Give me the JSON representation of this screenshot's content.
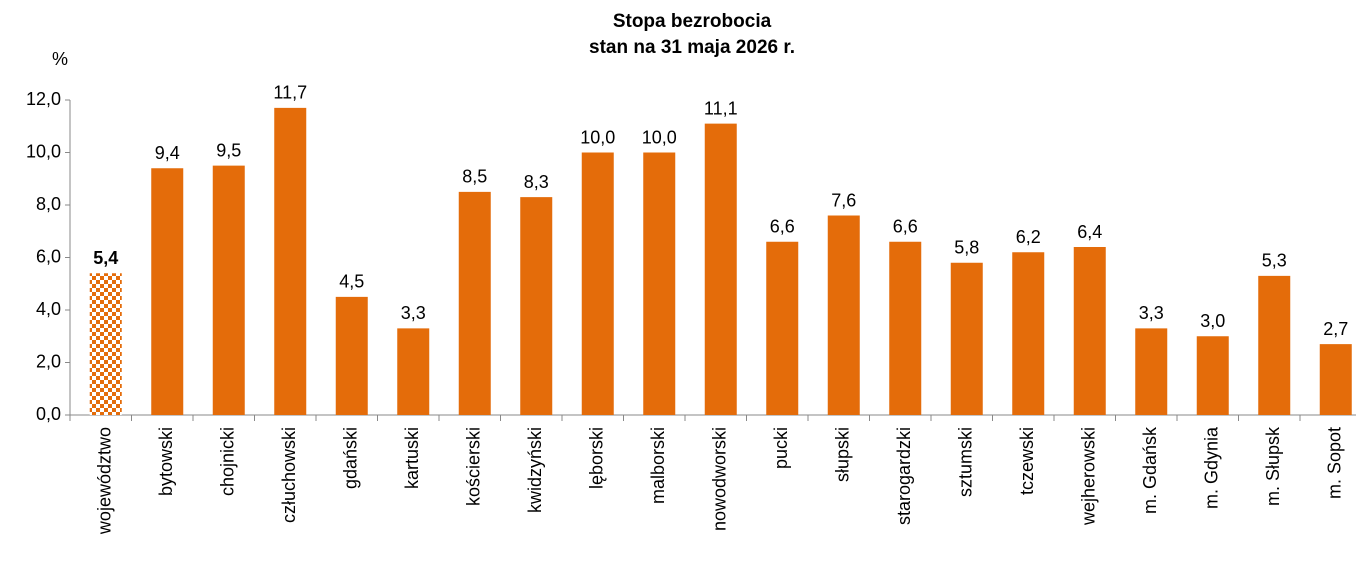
{
  "chart_data": {
    "type": "bar",
    "title": "Stopa bezrobocia",
    "subtitle": "stan na 31 maja 2026 r.",
    "y_label": "%",
    "categories": [
      "województwo",
      "bytowski",
      "chojnicki",
      "człuchowski",
      "gdański",
      "kartuski",
      "kościerski",
      "kwidzyński",
      "lęborski",
      "malborski",
      "nowodworski",
      "pucki",
      "słupski",
      "starogardzki",
      "sztumski",
      "tczewski",
      "wejherowski",
      "m. Gdańsk",
      "m. Gdynia",
      "m. Słupsk",
      "m. Sopot"
    ],
    "values": [
      5.4,
      9.4,
      9.5,
      11.7,
      4.5,
      3.3,
      8.5,
      8.3,
      10.0,
      10.0,
      11.1,
      6.6,
      7.6,
      6.6,
      5.8,
      6.2,
      6.4,
      3.3,
      3.0,
      5.3,
      2.7
    ],
    "value_labels": [
      "5,4",
      "9,4",
      "9,5",
      "11,7",
      "4,5",
      "3,3",
      "8,5",
      "8,3",
      "10,0",
      "10,0",
      "11,1",
      "6,6",
      "7,6",
      "6,6",
      "5,8",
      "6,2",
      "6,4",
      "3,3",
      "3,0",
      "5,3",
      "2,7"
    ],
    "color": "#E46C0A",
    "highlighted": [
      0
    ],
    "ylim": [
      0,
      12
    ],
    "yticks": [
      {
        "value": 0,
        "label": "0,0"
      },
      {
        "value": 2,
        "label": "2,0"
      },
      {
        "value": 4,
        "label": "4,0"
      },
      {
        "value": 6,
        "label": "6,0"
      },
      {
        "value": 8,
        "label": "8,0"
      },
      {
        "value": 10,
        "label": "10,0"
      },
      {
        "value": 12,
        "label": "12,0"
      }
    ],
    "grid": false
  }
}
